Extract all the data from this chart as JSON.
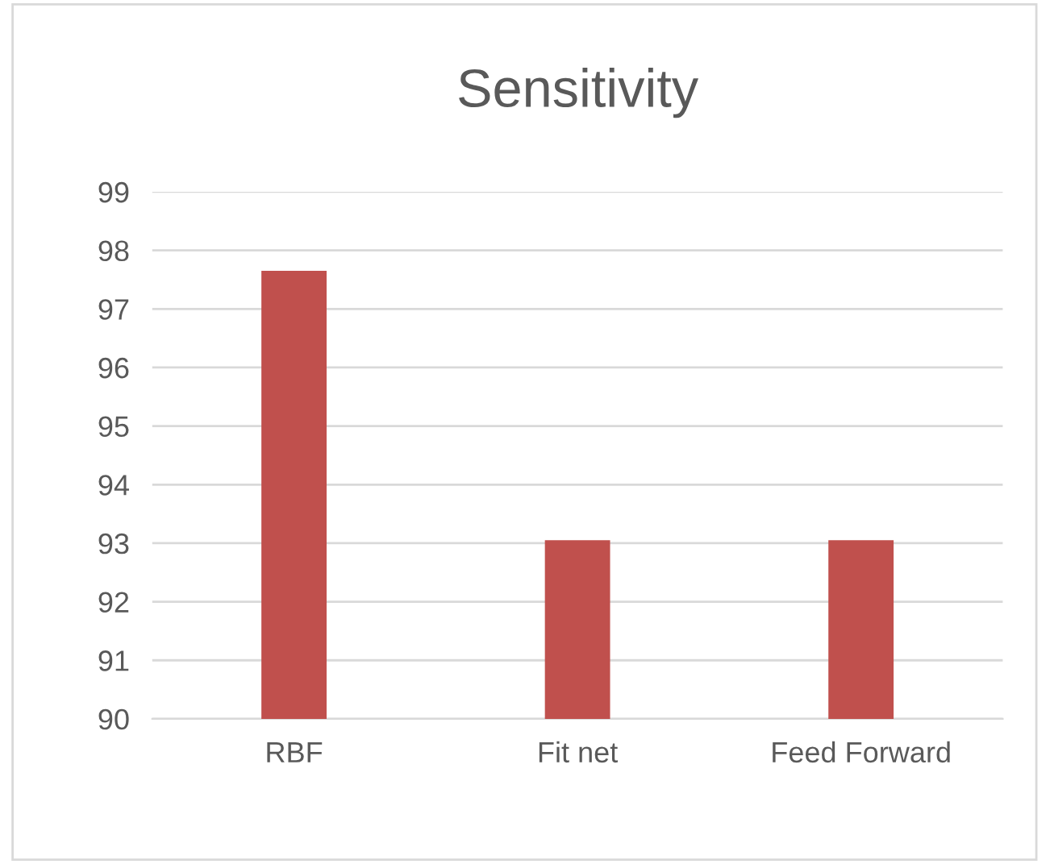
{
  "chart_data": {
    "type": "bar",
    "title": "Sensitivity",
    "categories": [
      "RBF",
      "Fit net",
      "Feed Forward"
    ],
    "values": [
      97.65,
      93.05,
      93.05
    ],
    "color": "#c0504d",
    "ylim": [
      90,
      99
    ],
    "yticks": [
      90,
      91,
      92,
      93,
      94,
      95,
      96,
      97,
      98,
      99
    ],
    "grid": "y",
    "legend": false
  }
}
